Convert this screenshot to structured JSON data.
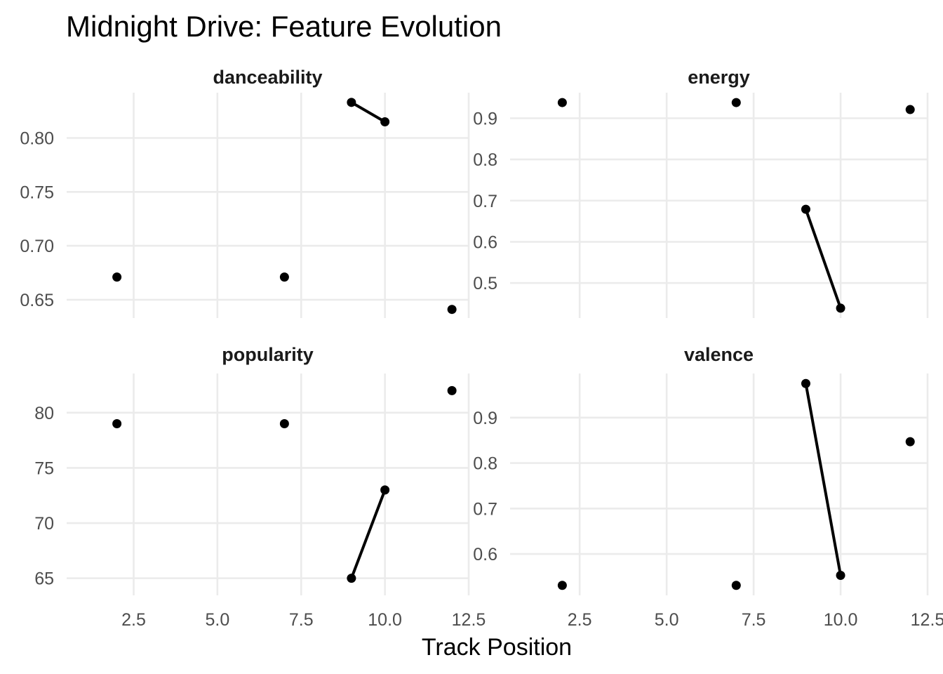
{
  "chart_data": {
    "type": "line",
    "title": "Midnight Drive: Feature Evolution",
    "xlabel": "Track Position",
    "ylabel": "",
    "grid": true,
    "legend": "none",
    "facets": [
      {
        "name": "danceability",
        "xlim": [
          0.5,
          12.5
        ],
        "ylim": [
          0.633,
          0.842
        ],
        "xticks": [
          2.5,
          5.0,
          7.5,
          10.0,
          12.5
        ],
        "xtick_labels": [
          "2.5",
          "5.0",
          "7.5",
          "10.0",
          "12.5"
        ],
        "yticks": [
          0.65,
          0.7,
          0.75,
          0.8
        ],
        "ytick_labels": [
          "0.65",
          "0.70",
          "0.75",
          "0.80"
        ],
        "show_x_labels": false,
        "points": [
          {
            "x": 2,
            "y": 0.671
          },
          {
            "x": 7,
            "y": 0.671
          },
          {
            "x": 9,
            "y": 0.833
          },
          {
            "x": 10,
            "y": 0.815
          },
          {
            "x": 12,
            "y": 0.641
          }
        ],
        "line": [
          {
            "x": 9,
            "y": 0.833
          },
          {
            "x": 10,
            "y": 0.815
          }
        ]
      },
      {
        "name": "energy",
        "xlim": [
          0.5,
          12.5
        ],
        "ylim": [
          0.415,
          0.962
        ],
        "xticks": [
          2.5,
          5.0,
          7.5,
          10.0,
          12.5
        ],
        "xtick_labels": [
          "2.5",
          "5.0",
          "7.5",
          "10.0",
          "12.5"
        ],
        "yticks": [
          0.5,
          0.6,
          0.7,
          0.8,
          0.9
        ],
        "ytick_labels": [
          "0.5",
          "0.6",
          "0.7",
          "0.8",
          "0.9"
        ],
        "show_x_labels": false,
        "points": [
          {
            "x": 2,
            "y": 0.938
          },
          {
            "x": 7,
            "y": 0.938
          },
          {
            "x": 9,
            "y": 0.679
          },
          {
            "x": 10,
            "y": 0.439
          },
          {
            "x": 12,
            "y": 0.921
          }
        ],
        "line": [
          {
            "x": 9,
            "y": 0.679
          },
          {
            "x": 10,
            "y": 0.439
          }
        ]
      },
      {
        "name": "popularity",
        "xlim": [
          0.5,
          12.5
        ],
        "ylim": [
          63.45,
          83.55
        ],
        "xticks": [
          2.5,
          5.0,
          7.5,
          10.0,
          12.5
        ],
        "xtick_labels": [
          "2.5",
          "5.0",
          "7.5",
          "10.0",
          "12.5"
        ],
        "yticks": [
          65,
          70,
          75,
          80
        ],
        "ytick_labels": [
          "65",
          "70",
          "75",
          "80"
        ],
        "show_x_labels": true,
        "points": [
          {
            "x": 2,
            "y": 79
          },
          {
            "x": 7,
            "y": 79
          },
          {
            "x": 9,
            "y": 65
          },
          {
            "x": 10,
            "y": 73
          },
          {
            "x": 12,
            "y": 82
          }
        ],
        "line": [
          {
            "x": 9,
            "y": 65
          },
          {
            "x": 10,
            "y": 73
          }
        ]
      },
      {
        "name": "valence",
        "xlim": [
          0.5,
          12.5
        ],
        "ylim": [
          0.509,
          0.997
        ],
        "xticks": [
          2.5,
          5.0,
          7.5,
          10.0,
          12.5
        ],
        "xtick_labels": [
          "2.5",
          "5.0",
          "7.5",
          "10.0",
          "12.5"
        ],
        "yticks": [
          0.6,
          0.7,
          0.8,
          0.9
        ],
        "ytick_labels": [
          "0.6",
          "0.7",
          "0.8",
          "0.9"
        ],
        "show_x_labels": true,
        "points": [
          {
            "x": 2,
            "y": 0.531
          },
          {
            "x": 7,
            "y": 0.531
          },
          {
            "x": 9,
            "y": 0.975
          },
          {
            "x": 10,
            "y": 0.553
          },
          {
            "x": 12,
            "y": 0.847
          }
        ],
        "line": [
          {
            "x": 9,
            "y": 0.975
          },
          {
            "x": 10,
            "y": 0.553
          }
        ]
      }
    ]
  }
}
